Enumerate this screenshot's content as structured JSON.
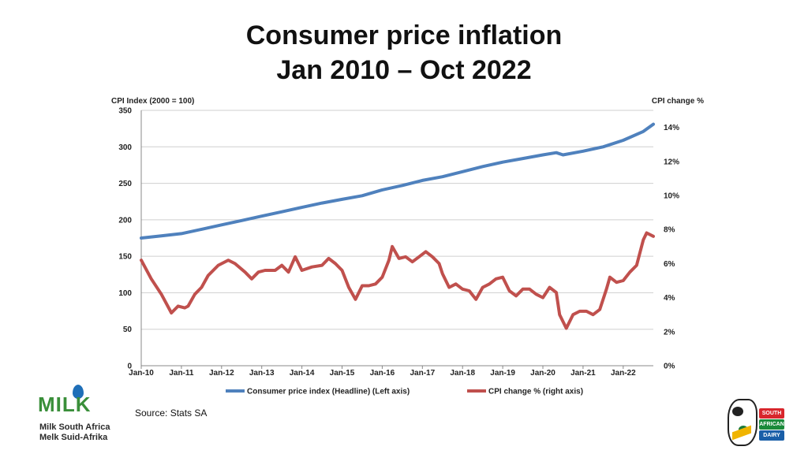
{
  "title": {
    "line1": "Consumer price inflation",
    "line2": "Jan 2010 – Oct 2022"
  },
  "source": "Source: Stats SA",
  "logos": {
    "left_mark": "MILK",
    "left_line1": "Milk South Africa",
    "left_line2": "Melk Suid-Afrika",
    "right_tags": [
      "SOUTH",
      "AFRICAN",
      "DAIRY"
    ]
  },
  "colors": {
    "cpi_index": "#4f81bd",
    "cpi_change": "#c0504d",
    "grid": "#cfcfcf"
  },
  "chart_data": {
    "type": "line",
    "title": "Consumer price inflation Jan 2010 – Oct 2022",
    "ylabel_left": "CPI Index (2000 = 100)",
    "ylabel_right": "CPI change %",
    "ylim_left": [
      0,
      350
    ],
    "ylim_right": [
      0,
      15
    ],
    "yticks_left": [
      "0",
      "50",
      "100",
      "150",
      "200",
      "250",
      "300",
      "350"
    ],
    "yticks_right": [
      "0%",
      "2%",
      "4%",
      "6%",
      "8%",
      "10%",
      "12%",
      "14%"
    ],
    "x_start": "Jan-10",
    "x_months": 154,
    "xticks": [
      "Jan-10",
      "Jan-11",
      "Jan-12",
      "Jan-13",
      "Jan-14",
      "Jan-15",
      "Jan-16",
      "Jan-17",
      "Jan-18",
      "Jan-19",
      "Jan-20",
      "Jan-21",
      "Jan-22"
    ],
    "grid": true,
    "legend_position": "bottom",
    "series": [
      {
        "name": "Consumer price index (Headline) (Left axis)",
        "axis": "left",
        "points": [
          [
            0,
            175
          ],
          [
            6,
            178
          ],
          [
            12,
            181
          ],
          [
            18,
            187
          ],
          [
            24,
            193
          ],
          [
            30,
            199
          ],
          [
            36,
            205
          ],
          [
            42,
            211
          ],
          [
            48,
            217
          ],
          [
            54,
            223
          ],
          [
            60,
            228
          ],
          [
            66,
            233
          ],
          [
            72,
            241
          ],
          [
            78,
            247
          ],
          [
            84,
            254
          ],
          [
            90,
            259
          ],
          [
            96,
            266
          ],
          [
            102,
            273
          ],
          [
            108,
            279
          ],
          [
            114,
            284
          ],
          [
            120,
            289
          ],
          [
            124,
            292
          ],
          [
            126,
            289
          ],
          [
            132,
            294
          ],
          [
            138,
            300
          ],
          [
            144,
            309
          ],
          [
            150,
            321
          ],
          [
            153,
            331
          ]
        ]
      },
      {
        "name": "CPI change % (right axis)",
        "axis": "right",
        "points": [
          [
            0,
            6.2
          ],
          [
            3,
            5.1
          ],
          [
            6,
            4.2
          ],
          [
            9,
            3.1
          ],
          [
            11,
            3.5
          ],
          [
            13,
            3.4
          ],
          [
            14,
            3.5
          ],
          [
            16,
            4.2
          ],
          [
            18,
            4.6
          ],
          [
            20,
            5.3
          ],
          [
            23,
            5.9
          ],
          [
            26,
            6.2
          ],
          [
            28,
            6.0
          ],
          [
            31,
            5.5
          ],
          [
            33,
            5.1
          ],
          [
            35,
            5.5
          ],
          [
            37,
            5.6
          ],
          [
            40,
            5.6
          ],
          [
            42,
            5.9
          ],
          [
            44,
            5.5
          ],
          [
            46,
            6.4
          ],
          [
            48,
            5.6
          ],
          [
            51,
            5.8
          ],
          [
            54,
            5.9
          ],
          [
            56,
            6.3
          ],
          [
            58,
            6.0
          ],
          [
            60,
            5.6
          ],
          [
            62,
            4.6
          ],
          [
            64,
            3.9
          ],
          [
            66,
            4.7
          ],
          [
            68,
            4.7
          ],
          [
            70,
            4.8
          ],
          [
            72,
            5.2
          ],
          [
            74,
            6.2
          ],
          [
            75,
            7.0
          ],
          [
            77,
            6.3
          ],
          [
            79,
            6.4
          ],
          [
            81,
            6.1
          ],
          [
            83,
            6.4
          ],
          [
            85,
            6.7
          ],
          [
            87,
            6.4
          ],
          [
            89,
            6.0
          ],
          [
            90,
            5.4
          ],
          [
            92,
            4.6
          ],
          [
            94,
            4.8
          ],
          [
            96,
            4.5
          ],
          [
            98,
            4.4
          ],
          [
            100,
            3.9
          ],
          [
            102,
            4.6
          ],
          [
            104,
            4.8
          ],
          [
            106,
            5.1
          ],
          [
            108,
            5.2
          ],
          [
            110,
            4.4
          ],
          [
            112,
            4.1
          ],
          [
            114,
            4.5
          ],
          [
            116,
            4.5
          ],
          [
            118,
            4.2
          ],
          [
            120,
            4.0
          ],
          [
            122,
            4.6
          ],
          [
            124,
            4.3
          ],
          [
            125,
            3.0
          ],
          [
            127,
            2.2
          ],
          [
            129,
            3.0
          ],
          [
            131,
            3.2
          ],
          [
            133,
            3.2
          ],
          [
            135,
            3.0
          ],
          [
            137,
            3.3
          ],
          [
            139,
            4.5
          ],
          [
            140,
            5.2
          ],
          [
            142,
            4.9
          ],
          [
            144,
            5.0
          ],
          [
            146,
            5.5
          ],
          [
            148,
            5.9
          ],
          [
            150,
            7.4
          ],
          [
            151,
            7.8
          ],
          [
            153,
            7.6
          ]
        ]
      }
    ]
  }
}
